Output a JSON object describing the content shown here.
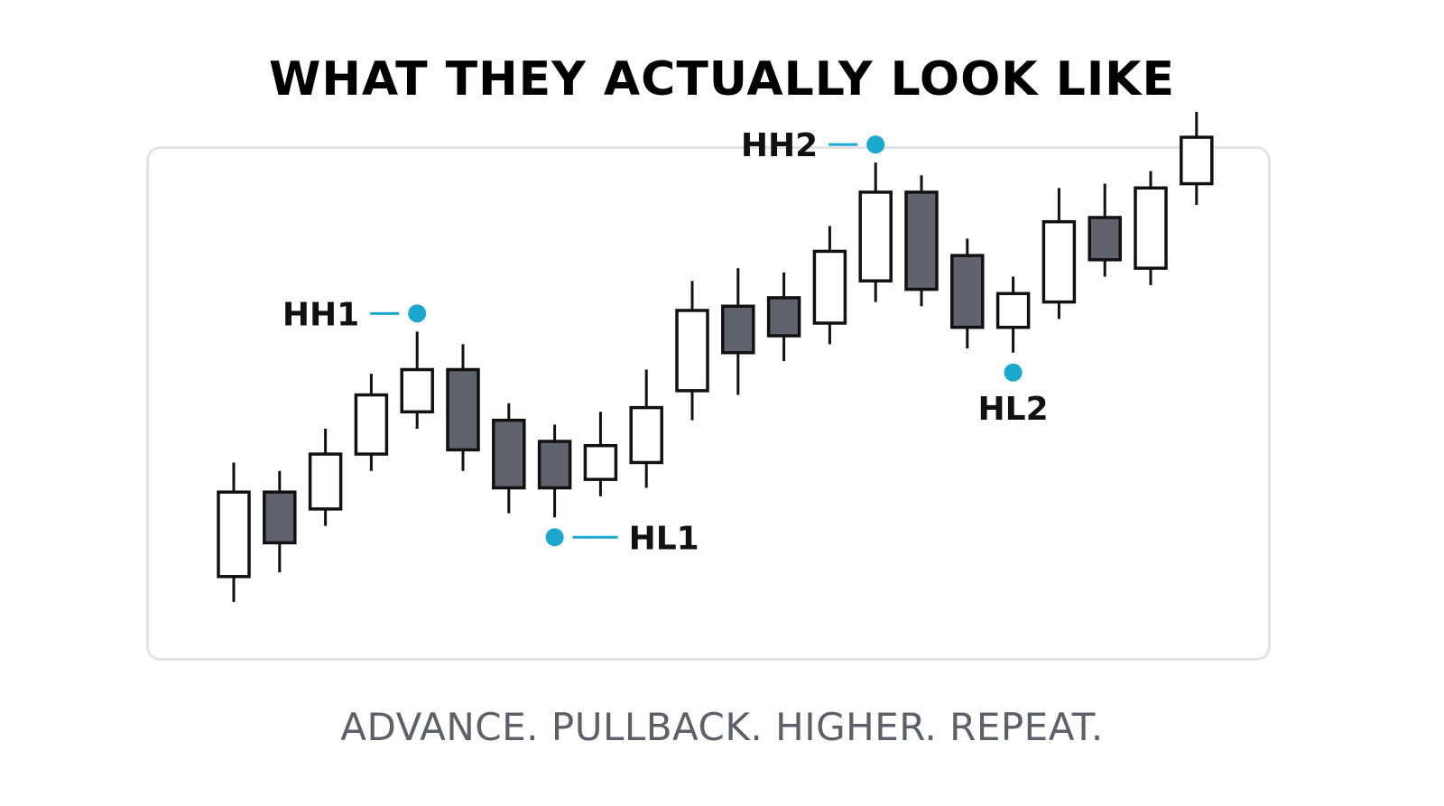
{
  "title": "WHAT THEY ACTUALLY LOOK LIKE",
  "subtitle": "ADVANCE. PULLBACK. HIGHER. REPEAT.",
  "colors": {
    "bullish_fill": "#ffffff",
    "bearish_fill": "#60636b",
    "outline": "#111111",
    "marker": "#1ba8cf",
    "frame_border": "#e3e3e3",
    "subtitle_text": "#5d6068"
  },
  "chart_data": {
    "type": "candlestick",
    "ylim": [
      0,
      100
    ],
    "grid": false,
    "candles": [
      {
        "open": 15,
        "close": 35,
        "high": 42,
        "low": 9
      },
      {
        "open": 35,
        "close": 23,
        "high": 40,
        "low": 16
      },
      {
        "open": 31,
        "close": 44,
        "high": 50,
        "low": 27
      },
      {
        "open": 44,
        "close": 58,
        "high": 63,
        "low": 40
      },
      {
        "open": 54,
        "close": 64,
        "high": 73,
        "low": 50
      },
      {
        "open": 64,
        "close": 45,
        "high": 70,
        "low": 40
      },
      {
        "open": 52,
        "close": 36,
        "high": 56,
        "low": 30
      },
      {
        "open": 47,
        "close": 36,
        "high": 51,
        "low": 29
      },
      {
        "open": 38,
        "close": 46,
        "high": 54,
        "low": 34
      },
      {
        "open": 42,
        "close": 55,
        "high": 64,
        "low": 36
      },
      {
        "open": 59,
        "close": 78,
        "high": 85,
        "low": 52
      },
      {
        "open": 79,
        "close": 68,
        "high": 88,
        "low": 58
      },
      {
        "open": 81,
        "close": 72,
        "high": 87,
        "low": 66
      },
      {
        "open": 75,
        "close": 92,
        "high": 98,
        "low": 70
      },
      {
        "open": 85,
        "close": 106,
        "high": 113,
        "low": 80
      },
      {
        "open": 106,
        "close": 83,
        "high": 110,
        "low": 79
      },
      {
        "open": 91,
        "close": 74,
        "high": 95,
        "low": 69
      },
      {
        "open": 74,
        "close": 82,
        "high": 86,
        "low": 68
      },
      {
        "open": 80,
        "close": 99,
        "high": 107,
        "low": 76
      },
      {
        "open": 100,
        "close": 90,
        "high": 108,
        "low": 86
      },
      {
        "open": 88,
        "close": 107,
        "high": 111,
        "low": 84
      },
      {
        "open": 108,
        "close": 119,
        "high": 125,
        "low": 103
      }
    ],
    "annotations": [
      {
        "label": "HH1",
        "candle_index": 4,
        "anchor": "high",
        "label_side": "left"
      },
      {
        "label": "HL1",
        "candle_index": 7,
        "anchor": "low",
        "label_side": "right"
      },
      {
        "label": "HH2",
        "candle_index": 14,
        "anchor": "high",
        "label_side": "left"
      },
      {
        "label": "HL2",
        "candle_index": 17,
        "anchor": "low",
        "label_side": "below"
      }
    ]
  }
}
